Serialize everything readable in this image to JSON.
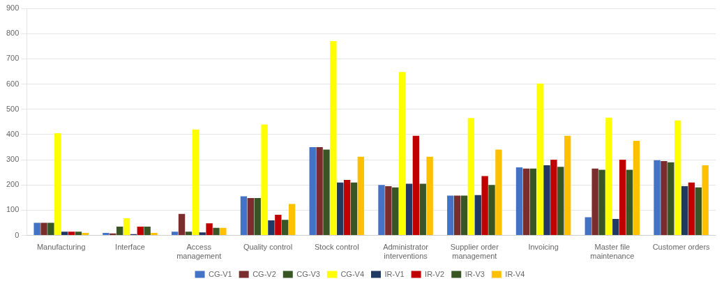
{
  "chart_data": {
    "type": "bar",
    "categories": [
      "Manufacturing",
      "Interface",
      "Access\nmanagement",
      "Quality control",
      "Stock control",
      "Administrator\ninterventions",
      "Supplier order\nmanagement",
      "Invoicing",
      "Master file\nmaintenance",
      "Customer orders"
    ],
    "series": [
      {
        "name": "CG-V1",
        "color": "#4472C4",
        "values": [
          50,
          10,
          15,
          155,
          350,
          200,
          158,
          270,
          72,
          298
        ]
      },
      {
        "name": "CG-V2",
        "color": "#7B2C2C",
        "values": [
          50,
          8,
          85,
          148,
          350,
          195,
          158,
          265,
          265,
          295
        ]
      },
      {
        "name": "CG-V3",
        "color": "#375623",
        "values": [
          50,
          35,
          15,
          148,
          340,
          190,
          158,
          265,
          260,
          290
        ]
      },
      {
        "name": "CG-V4",
        "color": "#FFFF00",
        "values": [
          405,
          68,
          420,
          440,
          770,
          648,
          465,
          602,
          467,
          456
        ]
      },
      {
        "name": "IR-V1",
        "color": "#1F3864",
        "values": [
          15,
          5,
          12,
          60,
          210,
          205,
          160,
          278,
          65,
          195
        ]
      },
      {
        "name": "IR-V2",
        "color": "#C00000",
        "values": [
          15,
          35,
          48,
          82,
          220,
          395,
          235,
          300,
          300,
          210
        ]
      },
      {
        "name": "IR-V3",
        "color": "#375623",
        "values": [
          15,
          35,
          30,
          62,
          210,
          205,
          200,
          272,
          260,
          190
        ]
      },
      {
        "name": "IR-V4",
        "color": "#FFC000",
        "values": [
          10,
          10,
          30,
          125,
          312,
          312,
          340,
          395,
          375,
          278
        ]
      }
    ],
    "ylim": [
      0,
      900
    ],
    "yticks": [
      0,
      100,
      200,
      300,
      400,
      500,
      600,
      700,
      800,
      900
    ],
    "grid": true,
    "legend": "bottom"
  }
}
